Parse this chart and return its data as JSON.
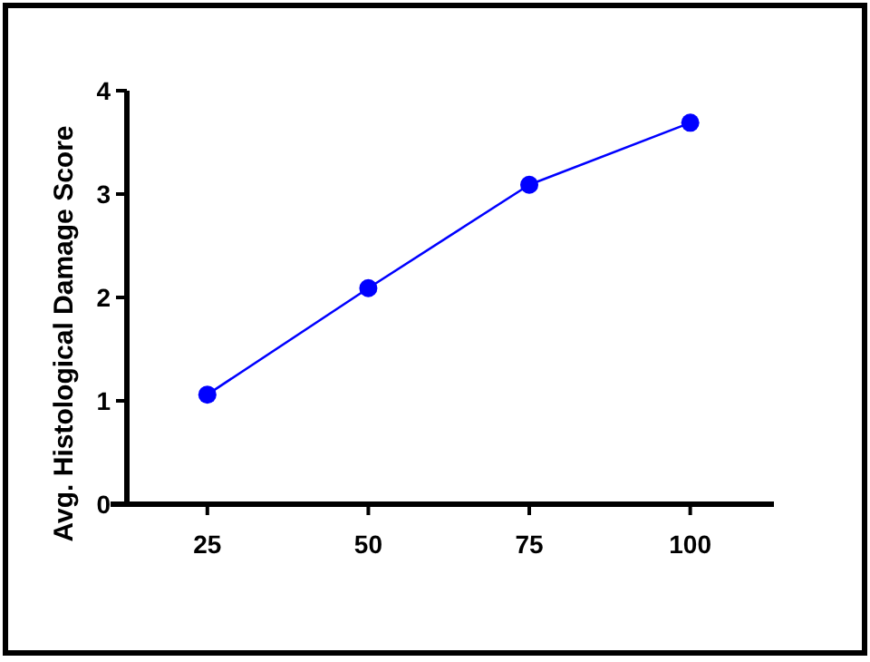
{
  "chart_data": {
    "type": "line",
    "ylabel": "Avg. Histological Damage Score",
    "x": [
      25,
      50,
      75,
      100
    ],
    "series": [
      {
        "color": "#0000ff",
        "values": [
          1.06,
          2.09,
          3.09,
          3.69
        ]
      }
    ],
    "xlim": [
      12.5,
      113
    ],
    "xticks": [
      25,
      50,
      75,
      100
    ],
    "ylim": [
      0,
      4
    ],
    "yticks": [
      0,
      1,
      2,
      3,
      4
    ],
    "marker": "circle",
    "line_style": "solid",
    "grid": false
  }
}
